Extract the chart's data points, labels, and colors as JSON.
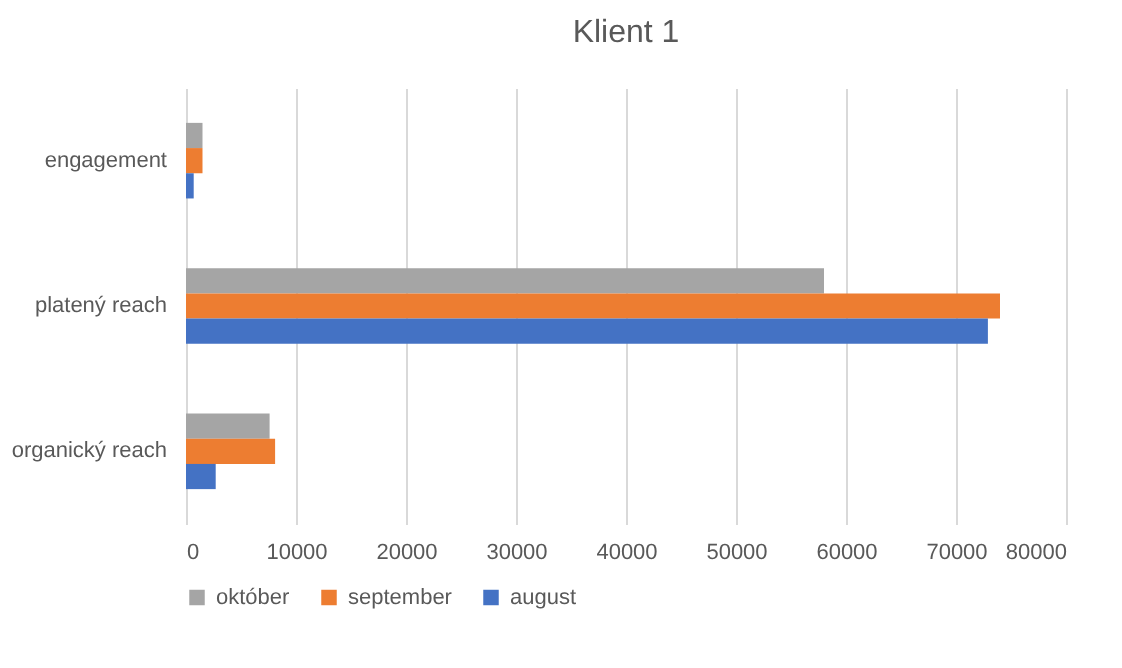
{
  "chart_data": {
    "type": "bar",
    "orientation": "horizontal",
    "title": "Klient 1",
    "categories": [
      "engagement",
      "platený reach",
      "organický reach"
    ],
    "series": [
      {
        "name": "október",
        "color": "#a5a5a5",
        "values": [
          1500,
          58000,
          7600
        ]
      },
      {
        "name": "september",
        "color": "#ed7d31",
        "values": [
          1500,
          74000,
          8100
        ]
      },
      {
        "name": "august",
        "color": "#4472c4",
        "values": [
          700,
          72900,
          2700
        ]
      }
    ],
    "xlim": [
      0,
      80000
    ],
    "xticks": [
      0,
      10000,
      20000,
      30000,
      40000,
      50000,
      60000,
      70000,
      80000
    ],
    "grid": "x",
    "legend": "bottom"
  }
}
